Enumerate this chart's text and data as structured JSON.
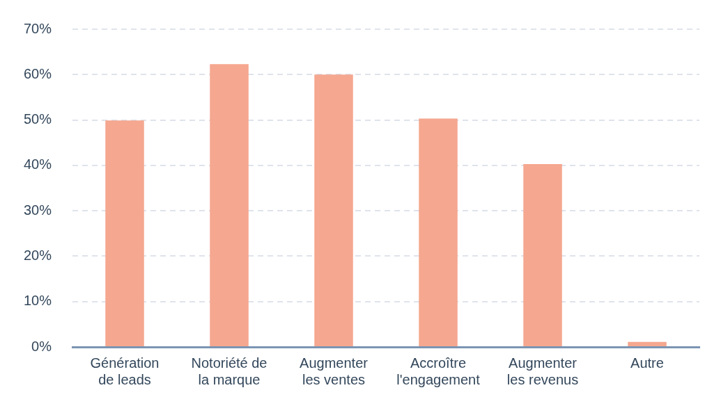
{
  "chart_data": {
    "type": "bar",
    "categories": [
      "Génération de leads",
      "Notoriété de la marque",
      "Augmenter les ventes",
      "Accroître l'engagement",
      "Augmenter les revenus",
      "Autre"
    ],
    "values": [
      49.9,
      62.3,
      60,
      50.3,
      40.3,
      1.1
    ],
    "color": "#f5a78f",
    "ylim": [
      0,
      70
    ],
    "yticks": [
      {
        "value": 0,
        "label": "0%"
      },
      {
        "value": 10,
        "label": "10%"
      },
      {
        "value": 20,
        "label": "20%"
      },
      {
        "value": 30,
        "label": "30%"
      },
      {
        "value": 40,
        "label": "40%"
      },
      {
        "value": 50,
        "label": "50%"
      },
      {
        "value": 60,
        "label": "60%"
      },
      {
        "value": 70,
        "label": "70%"
      }
    ],
    "grid": "y",
    "legend": false
  }
}
